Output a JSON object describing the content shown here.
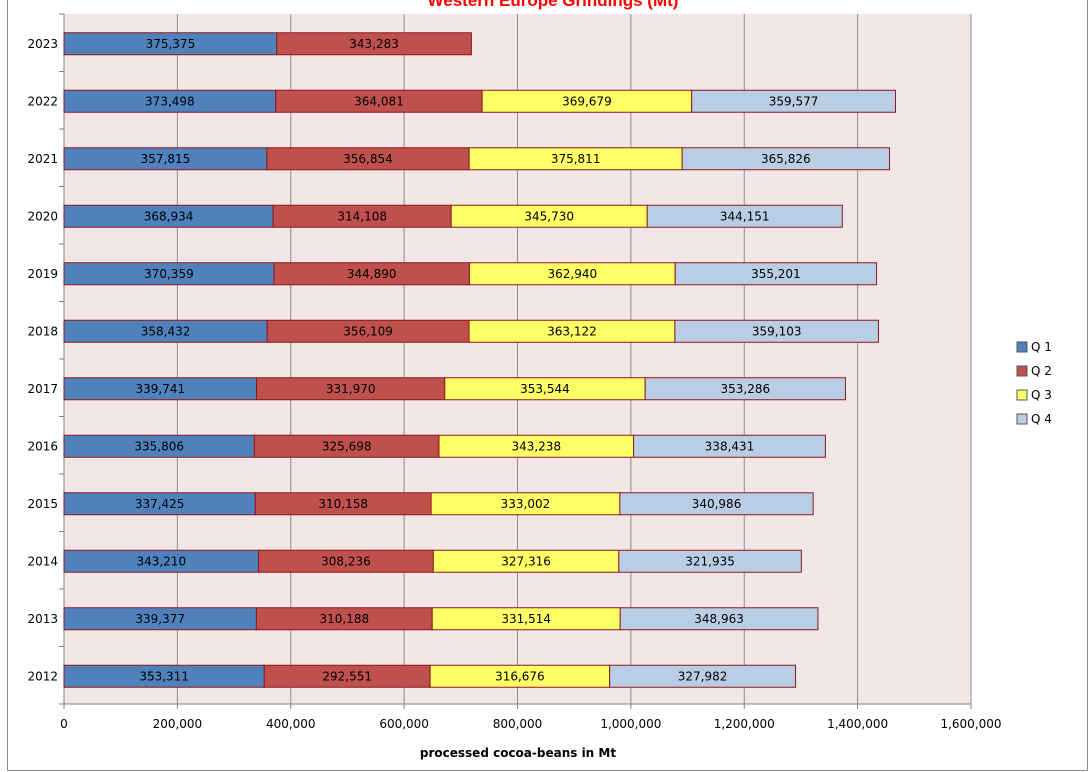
{
  "chart_data": {
    "type": "bar",
    "orientation": "horizontal",
    "stacked": true,
    "title": "Western Europe Grindings (Mt)",
    "xlabel": "processed cocoa-beans in Mt",
    "ylabel": "",
    "xlim": [
      0,
      1600000
    ],
    "x_ticks": [
      0,
      200000,
      400000,
      600000,
      800000,
      1000000,
      1200000,
      1400000,
      1600000
    ],
    "x_tick_labels": [
      "0",
      "200,000",
      "400,000",
      "600,000",
      "800,000",
      "1,000,000",
      "1,200,000",
      "1,400,000",
      "1,600,000"
    ],
    "grid": true,
    "legend_position": "right",
    "categories": [
      "2023",
      "2022",
      "2021",
      "2020",
      "2019",
      "2018",
      "2017",
      "2016",
      "2015",
      "2014",
      "2013",
      "2012"
    ],
    "series": [
      {
        "name": "Q 1",
        "color": "#4f81bd",
        "values": [
          375375,
          373498,
          357815,
          368934,
          370359,
          358432,
          339741,
          335806,
          337425,
          343210,
          339377,
          353311
        ],
        "labels": [
          "375,375",
          "373,498",
          "357,815",
          "368,934",
          "370,359",
          "358,432",
          "339,741",
          "335,806",
          "337,425",
          "343,210",
          "339,377",
          "353,311"
        ]
      },
      {
        "name": "Q 2",
        "color": "#c0504d",
        "values": [
          343283,
          364081,
          356854,
          314108,
          344890,
          356109,
          331970,
          325698,
          310158,
          308236,
          310188,
          292551
        ],
        "labels": [
          "343,283",
          "364,081",
          "356,854",
          "314,108",
          "344,890",
          "356,109",
          "331,970",
          "325,698",
          "310,158",
          "308,236",
          "310,188",
          "292,551"
        ]
      },
      {
        "name": "Q 3",
        "color": "#ffff66",
        "values": [
          null,
          369679,
          375811,
          345730,
          362940,
          363122,
          353544,
          343238,
          333002,
          327316,
          331514,
          316676
        ],
        "labels": [
          "",
          "369,679",
          "375,811",
          "345,730",
          "362,940",
          "363,122",
          "353,544",
          "343,238",
          "333,002",
          "327,316",
          "331,514",
          "316,676"
        ]
      },
      {
        "name": "Q 4",
        "color": "#b9cde5",
        "values": [
          null,
          359577,
          365826,
          344151,
          355201,
          359103,
          353286,
          338431,
          340986,
          321935,
          348963,
          327982
        ],
        "labels": [
          "",
          "359,577",
          "365,826",
          "344,151",
          "355,201",
          "359,103",
          "353,286",
          "338,431",
          "340,986",
          "321,935",
          "348,963",
          "327,982"
        ]
      }
    ],
    "colors": {
      "plot_background": "#f2e6e6",
      "gridline": "#8c8c8c",
      "title": "#ff0000",
      "bar_border": "#8b1a1a"
    }
  }
}
